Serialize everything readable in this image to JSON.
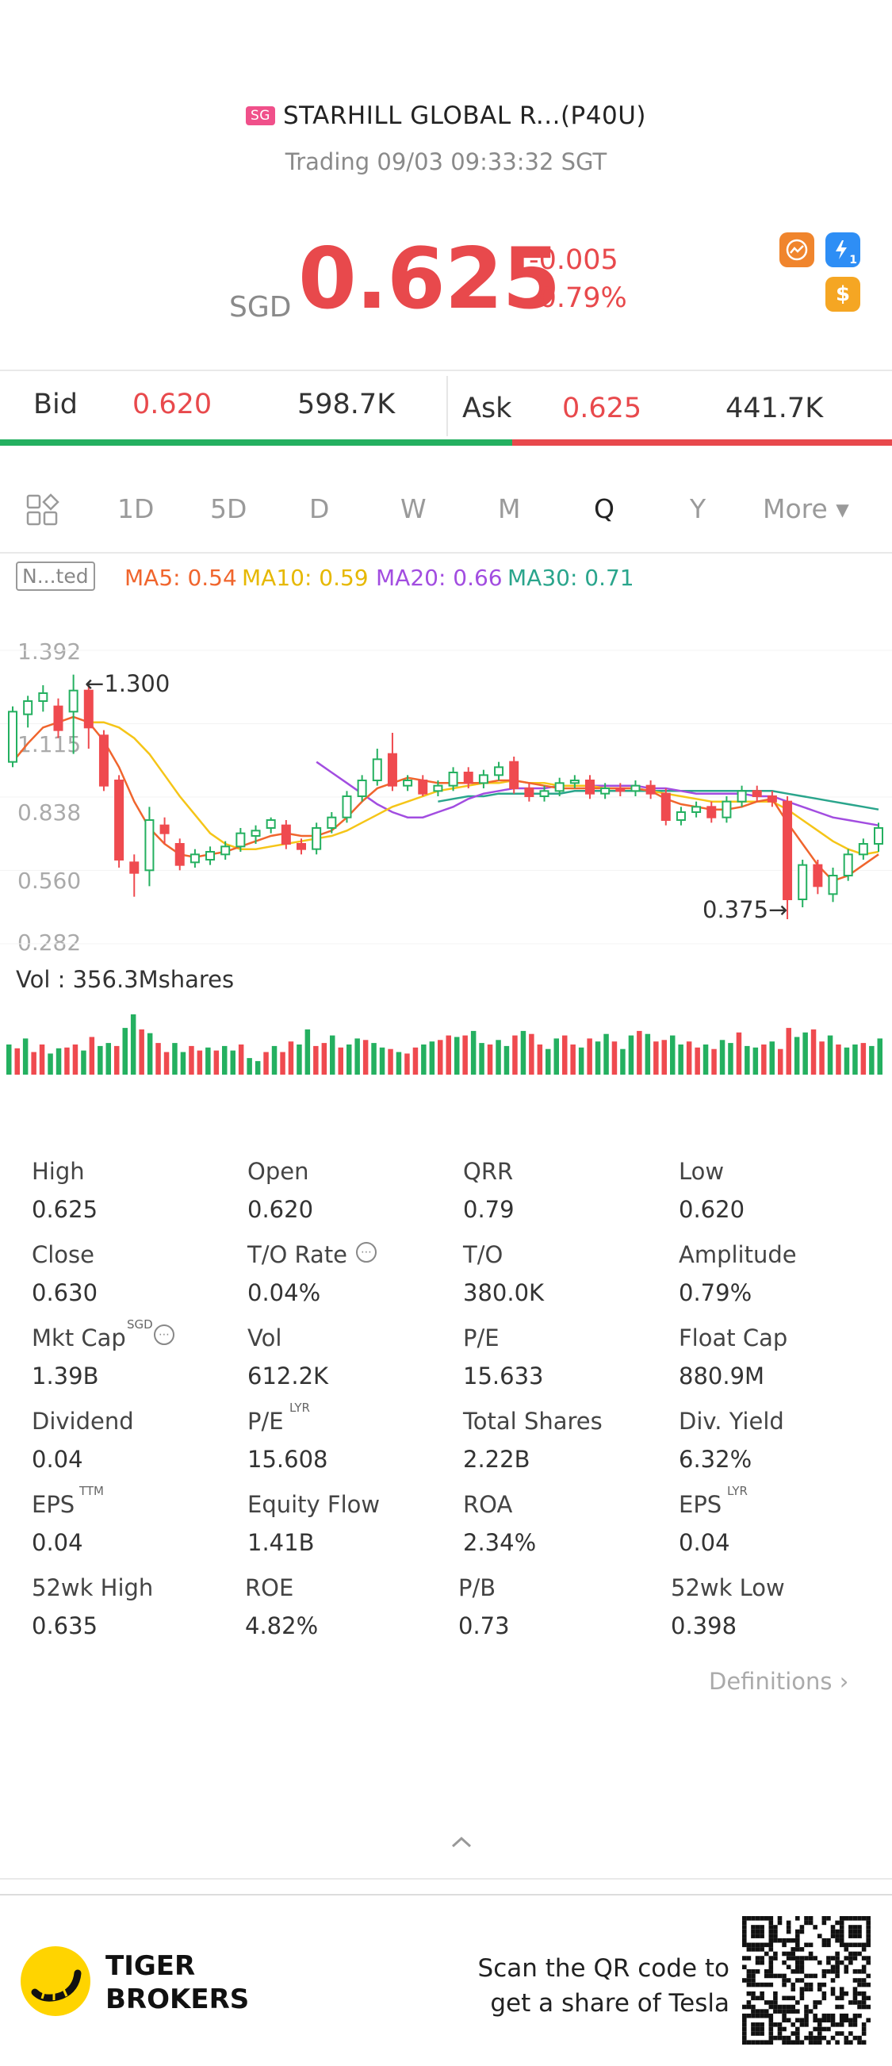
{
  "header": {
    "market_badge": "SG",
    "title": "STARHILL GLOBAL R...(P40U)",
    "subtitle": "Trading 09/03 09:33:32 SGT",
    "currency": "SGD",
    "price": "0.625",
    "change": "-0.005",
    "change_pct": "-0.79%",
    "icon_colors": {
      "chart_icon": "#f0852d",
      "flash_icon": "#2e8ef5",
      "dollar_icon": "#f5a623"
    },
    "flash_icon_label": "1",
    "dollar_icon_label": "$"
  },
  "quote": {
    "bid_label": "Bid",
    "bid_price": "0.620",
    "bid_size": "598.7K",
    "ask_label": "Ask",
    "ask_price": "0.625",
    "ask_size": "441.7K",
    "bid_share": 0.574
  },
  "periods": {
    "items": [
      "1D",
      "5D",
      "D",
      "W",
      "M",
      "Q",
      "Y"
    ],
    "active": "Q",
    "more_label": "More ▾"
  },
  "indicators": {
    "adjust_tag": "N...ted",
    "ma5": "MA5: 0.54",
    "ma10": "MA10: 0.59",
    "ma20": "MA20: 0.66",
    "ma30": "MA30: 0.71",
    "colors": {
      "ma5": "#f0652d",
      "ma10": "#f5c518",
      "ma20": "#a24de0",
      "ma30": "#2aa58c",
      "up": "#24b060",
      "down": "#ef4a4f"
    }
  },
  "chart_data": {
    "type": "candlestick",
    "y_ticks": [
      "1.392",
      "1.115",
      "0.838",
      "0.560",
      "0.282"
    ],
    "ylim": [
      0.282,
      1.392
    ],
    "high_marker": "1.300",
    "low_marker": "0.375",
    "volume_label": "Vol  : 356.3Mshares",
    "candles": [
      {
        "o": 0.97,
        "c": 1.16,
        "h": 1.18,
        "l": 0.95
      },
      {
        "o": 1.15,
        "c": 1.2,
        "h": 1.22,
        "l": 1.1
      },
      {
        "o": 1.2,
        "c": 1.23,
        "h": 1.26,
        "l": 1.16
      },
      {
        "o": 1.18,
        "c": 1.09,
        "h": 1.21,
        "l": 1.06
      },
      {
        "o": 1.16,
        "c": 1.24,
        "h": 1.3,
        "l": 1.0
      },
      {
        "o": 1.24,
        "c": 1.1,
        "h": 1.26,
        "l": 1.02
      },
      {
        "o": 1.07,
        "c": 0.88,
        "h": 1.09,
        "l": 0.86
      },
      {
        "o": 0.9,
        "c": 0.6,
        "h": 0.92,
        "l": 0.57
      },
      {
        "o": 0.59,
        "c": 0.55,
        "h": 0.62,
        "l": 0.46
      },
      {
        "o": 0.56,
        "c": 0.75,
        "h": 0.8,
        "l": 0.5
      },
      {
        "o": 0.73,
        "c": 0.7,
        "h": 0.76,
        "l": 0.66
      },
      {
        "o": 0.66,
        "c": 0.58,
        "h": 0.68,
        "l": 0.56
      },
      {
        "o": 0.59,
        "c": 0.62,
        "h": 0.64,
        "l": 0.57
      },
      {
        "o": 0.6,
        "c": 0.63,
        "h": 0.65,
        "l": 0.58
      },
      {
        "o": 0.62,
        "c": 0.65,
        "h": 0.67,
        "l": 0.6
      },
      {
        "o": 0.65,
        "c": 0.7,
        "h": 0.72,
        "l": 0.63
      },
      {
        "o": 0.69,
        "c": 0.71,
        "h": 0.73,
        "l": 0.66
      },
      {
        "o": 0.72,
        "c": 0.75,
        "h": 0.76,
        "l": 0.7
      },
      {
        "o": 0.73,
        "c": 0.66,
        "h": 0.75,
        "l": 0.64
      },
      {
        "o": 0.66,
        "c": 0.64,
        "h": 0.68,
        "l": 0.62
      },
      {
        "o": 0.64,
        "c": 0.72,
        "h": 0.74,
        "l": 0.62
      },
      {
        "o": 0.72,
        "c": 0.76,
        "h": 0.78,
        "l": 0.7
      },
      {
        "o": 0.76,
        "c": 0.84,
        "h": 0.86,
        "l": 0.74
      },
      {
        "o": 0.84,
        "c": 0.9,
        "h": 0.92,
        "l": 0.82
      },
      {
        "o": 0.9,
        "c": 0.98,
        "h": 1.02,
        "l": 0.88
      },
      {
        "o": 1.0,
        "c": 0.88,
        "h": 1.08,
        "l": 0.86
      },
      {
        "o": 0.88,
        "c": 0.9,
        "h": 0.92,
        "l": 0.86
      },
      {
        "o": 0.9,
        "c": 0.85,
        "h": 0.92,
        "l": 0.84
      },
      {
        "o": 0.86,
        "c": 0.88,
        "h": 0.9,
        "l": 0.84
      },
      {
        "o": 0.88,
        "c": 0.93,
        "h": 0.95,
        "l": 0.86
      },
      {
        "o": 0.93,
        "c": 0.89,
        "h": 0.95,
        "l": 0.87
      },
      {
        "o": 0.89,
        "c": 0.92,
        "h": 0.94,
        "l": 0.87
      },
      {
        "o": 0.92,
        "c": 0.95,
        "h": 0.97,
        "l": 0.9
      },
      {
        "o": 0.97,
        "c": 0.87,
        "h": 0.99,
        "l": 0.85
      },
      {
        "o": 0.87,
        "c": 0.84,
        "h": 0.89,
        "l": 0.82
      },
      {
        "o": 0.84,
        "c": 0.86,
        "h": 0.88,
        "l": 0.82
      },
      {
        "o": 0.86,
        "c": 0.89,
        "h": 0.91,
        "l": 0.84
      },
      {
        "o": 0.89,
        "c": 0.9,
        "h": 0.92,
        "l": 0.87
      },
      {
        "o": 0.9,
        "c": 0.85,
        "h": 0.92,
        "l": 0.83
      },
      {
        "o": 0.85,
        "c": 0.87,
        "h": 0.89,
        "l": 0.83
      },
      {
        "o": 0.87,
        "c": 0.86,
        "h": 0.89,
        "l": 0.84
      },
      {
        "o": 0.86,
        "c": 0.88,
        "h": 0.9,
        "l": 0.84
      },
      {
        "o": 0.88,
        "c": 0.85,
        "h": 0.9,
        "l": 0.83
      },
      {
        "o": 0.85,
        "c": 0.75,
        "h": 0.87,
        "l": 0.73
      },
      {
        "o": 0.75,
        "c": 0.78,
        "h": 0.8,
        "l": 0.73
      },
      {
        "o": 0.78,
        "c": 0.8,
        "h": 0.82,
        "l": 0.76
      },
      {
        "o": 0.8,
        "c": 0.76,
        "h": 0.82,
        "l": 0.74
      },
      {
        "o": 0.76,
        "c": 0.82,
        "h": 0.84,
        "l": 0.74
      },
      {
        "o": 0.82,
        "c": 0.86,
        "h": 0.88,
        "l": 0.8
      },
      {
        "o": 0.86,
        "c": 0.84,
        "h": 0.88,
        "l": 0.82
      },
      {
        "o": 0.84,
        "c": 0.82,
        "h": 0.86,
        "l": 0.8
      },
      {
        "o": 0.82,
        "c": 0.45,
        "h": 0.84,
        "l": 0.375
      },
      {
        "o": 0.45,
        "c": 0.58,
        "h": 0.6,
        "l": 0.42
      },
      {
        "o": 0.58,
        "c": 0.5,
        "h": 0.6,
        "l": 0.47
      },
      {
        "o": 0.47,
        "c": 0.54,
        "h": 0.57,
        "l": 0.44
      },
      {
        "o": 0.54,
        "c": 0.62,
        "h": 0.64,
        "l": 0.52
      },
      {
        "o": 0.62,
        "c": 0.66,
        "h": 0.68,
        "l": 0.6
      },
      {
        "o": 0.66,
        "c": 0.72,
        "h": 0.74,
        "l": 0.63
      }
    ],
    "ma5": [
      0.97,
      1.04,
      1.1,
      1.12,
      1.14,
      1.12,
      1.05,
      0.95,
      0.82,
      0.72,
      0.66,
      0.62,
      0.61,
      0.62,
      0.63,
      0.65,
      0.67,
      0.69,
      0.7,
      0.69,
      0.69,
      0.71,
      0.76,
      0.82,
      0.87,
      0.89,
      0.91,
      0.9,
      0.89,
      0.89,
      0.89,
      0.89,
      0.9,
      0.9,
      0.89,
      0.88,
      0.87,
      0.87,
      0.87,
      0.87,
      0.87,
      0.87,
      0.86,
      0.83,
      0.81,
      0.8,
      0.79,
      0.79,
      0.8,
      0.82,
      0.83,
      0.74,
      0.66,
      0.58,
      0.52,
      0.54,
      0.58,
      0.62
    ],
    "ma10": [
      null,
      null,
      null,
      null,
      null,
      1.12,
      1.12,
      1.1,
      1.06,
      1.0,
      0.92,
      0.84,
      0.77,
      0.7,
      0.66,
      0.64,
      0.64,
      0.65,
      0.66,
      0.67,
      0.68,
      0.69,
      0.71,
      0.74,
      0.77,
      0.8,
      0.82,
      0.84,
      0.86,
      0.87,
      0.88,
      0.89,
      0.89,
      0.9,
      0.89,
      0.89,
      0.88,
      0.88,
      0.88,
      0.87,
      0.87,
      0.87,
      0.86,
      0.85,
      0.84,
      0.83,
      0.82,
      0.82,
      0.82,
      0.82,
      0.82,
      0.79,
      0.75,
      0.71,
      0.67,
      0.64,
      0.62,
      0.63
    ],
    "ma20": [
      null,
      null,
      null,
      null,
      null,
      null,
      null,
      null,
      null,
      null,
      null,
      null,
      null,
      null,
      null,
      null,
      null,
      null,
      null,
      null,
      0.97,
      0.93,
      0.89,
      0.85,
      0.81,
      0.78,
      0.76,
      0.76,
      0.78,
      0.8,
      0.83,
      0.85,
      0.86,
      0.87,
      0.87,
      0.87,
      0.88,
      0.88,
      0.88,
      0.88,
      0.88,
      0.88,
      0.87,
      0.87,
      0.86,
      0.85,
      0.85,
      0.85,
      0.85,
      0.84,
      0.84,
      0.82,
      0.8,
      0.78,
      0.76,
      0.75,
      0.74,
      0.73
    ],
    "ma30": [
      null,
      null,
      null,
      null,
      null,
      null,
      null,
      null,
      null,
      null,
      null,
      null,
      null,
      null,
      null,
      null,
      null,
      null,
      null,
      null,
      null,
      null,
      null,
      null,
      null,
      null,
      null,
      null,
      0.82,
      0.83,
      0.84,
      0.84,
      0.85,
      0.85,
      0.85,
      0.85,
      0.85,
      0.86,
      0.86,
      0.86,
      0.86,
      0.86,
      0.86,
      0.86,
      0.86,
      0.86,
      0.86,
      0.86,
      0.86,
      0.86,
      0.86,
      0.85,
      0.84,
      0.83,
      0.82,
      0.81,
      0.8,
      0.79
    ],
    "volumes": [
      0.4,
      0.35,
      0.48,
      0.3,
      0.4,
      0.28,
      0.35,
      0.36,
      0.4,
      0.32,
      0.5,
      0.38,
      0.42,
      0.38,
      0.62,
      0.8,
      0.6,
      0.55,
      0.42,
      0.3,
      0.42,
      0.3,
      0.38,
      0.32,
      0.36,
      0.32,
      0.38,
      0.32,
      0.4,
      0.22,
      0.18,
      0.3,
      0.38,
      0.3,
      0.44,
      0.4,
      0.6,
      0.38,
      0.42,
      0.52,
      0.36,
      0.4,
      0.48,
      0.46,
      0.42,
      0.36,
      0.34,
      0.3,
      0.28,
      0.36,
      0.4,
      0.44,
      0.46,
      0.52,
      0.5,
      0.52,
      0.58,
      0.42,
      0.4,
      0.46,
      0.38,
      0.52,
      0.58,
      0.54,
      0.4,
      0.34,
      0.48,
      0.52,
      0.4,
      0.36,
      0.48,
      0.44,
      0.54,
      0.44,
      0.34,
      0.52,
      0.58,
      0.54,
      0.44,
      0.46,
      0.52,
      0.4,
      0.44,
      0.36,
      0.4,
      0.34,
      0.46,
      0.42,
      0.56,
      0.38,
      0.36,
      0.4,
      0.44,
      0.34,
      0.62,
      0.5,
      0.56,
      0.6,
      0.44,
      0.52,
      0.4,
      0.36,
      0.4,
      0.42,
      0.38,
      0.48
    ]
  },
  "stats": [
    {
      "label": "High",
      "value": "0.625"
    },
    {
      "label": "Open",
      "value": "0.620"
    },
    {
      "label": "QRR",
      "value": "0.79"
    },
    {
      "label": "Low",
      "value": "0.620"
    },
    {
      "label": "Close",
      "value": "0.630"
    },
    {
      "label": "T/O Rate",
      "value": "0.04%"
    },
    {
      "label": "T/O",
      "value": "380.0K"
    },
    {
      "label": "Amplitude",
      "value": "0.79%"
    },
    {
      "label": "Mkt Cap",
      "value": "1.39B"
    },
    {
      "label": "Vol",
      "value": "612.2K"
    },
    {
      "label": "P/E",
      "value": "15.633"
    },
    {
      "label": "Float Cap",
      "value": "880.9M"
    },
    {
      "label": "Dividend",
      "value": "0.04"
    },
    {
      "label": "P/E",
      "value": "15.608"
    },
    {
      "label": "Total Shares",
      "value": "2.22B"
    },
    {
      "label": "Div. Yield",
      "value": "6.32%"
    },
    {
      "label": "EPS",
      "value": "0.04"
    },
    {
      "label": "Equity Flow",
      "value": "1.41B"
    },
    {
      "label": "ROA",
      "value": "2.34%"
    },
    {
      "label": "EPS",
      "value": "0.04"
    },
    {
      "label": "52wk High",
      "value": "0.635"
    },
    {
      "label": "ROE",
      "value": "4.82%"
    },
    {
      "label": "P/B",
      "value": "0.73"
    },
    {
      "label": "52wk Low",
      "value": "0.398"
    }
  ],
  "stat_sups": {
    "mkt_cap": "SGD",
    "pe_lyr": "LYR",
    "eps_ttm": "TTM",
    "eps_lyr": "LYR"
  },
  "definitions_label": "Definitions",
  "footer": {
    "brand_line1": "TIGER",
    "brand_line2": "BROKERS",
    "promo_line1": "Scan the QR code to",
    "promo_line2": "get a share of Tesla"
  }
}
